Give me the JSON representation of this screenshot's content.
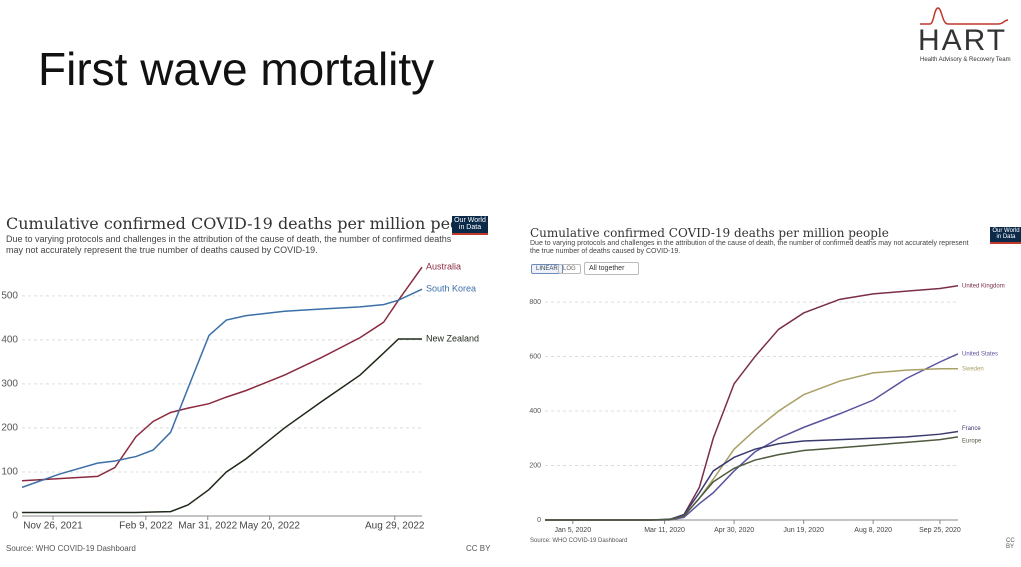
{
  "slide": {
    "title": "First wave mortality",
    "logo": "HART",
    "logo_subtitle": "Health Advisory & Recovery Team"
  },
  "chart_data": [
    {
      "type": "line",
      "title": "Cumulative confirmed COVID-19 deaths per million people",
      "subtitle": "Due to varying protocols and challenges in the attribution of the cause of death, the number of confirmed deaths may not accurately represent the true number of deaths caused by COVID-19.",
      "badge": "Our World in Data",
      "source": "Source: WHO COVID-19 Dashboard",
      "license": "CC BY",
      "x": [
        "2021-11-01",
        "2021-12-01",
        "2022-01-01",
        "2022-01-15",
        "2022-02-01",
        "2022-02-15",
        "2022-03-01",
        "2022-03-15",
        "2022-04-01",
        "2022-04-15",
        "2022-05-01",
        "2022-06-01",
        "2022-07-01",
        "2022-08-01",
        "2022-08-20",
        "2022-09-01",
        "2022-09-20"
      ],
      "xlim": [
        "2021-11-01",
        "2022-09-20"
      ],
      "xticks": [
        {
          "value": "2021-11-26",
          "label": "Nov 26, 2021"
        },
        {
          "value": "2022-02-09",
          "label": "Feb 9, 2022"
        },
        {
          "value": "2022-03-31",
          "label": "Mar 31, 2022"
        },
        {
          "value": "2022-05-20",
          "label": "May 20, 2022"
        },
        {
          "value": "2022-08-29",
          "label": "Aug 29, 2022"
        }
      ],
      "ylim": [
        0,
        570
      ],
      "yticks": [
        0,
        100,
        200,
        300,
        400,
        500
      ],
      "grid": true,
      "series": [
        {
          "name": "Australia",
          "color": "#8b2a3e",
          "values": [
            80,
            85,
            90,
            110,
            180,
            215,
            235,
            245,
            255,
            270,
            285,
            320,
            360,
            405,
            440,
            490,
            565
          ]
        },
        {
          "name": "South Korea",
          "color": "#3c6fa8",
          "values": [
            65,
            95,
            120,
            125,
            135,
            150,
            190,
            290,
            410,
            445,
            455,
            465,
            470,
            475,
            480,
            490,
            515
          ]
        },
        {
          "name": "New Zealand",
          "color": "#1f2a1a",
          "values": [
            8,
            8,
            8,
            8,
            8,
            9,
            10,
            25,
            60,
            100,
            130,
            200,
            260,
            320,
            370,
            402,
            402
          ]
        }
      ]
    },
    {
      "type": "line",
      "title": "Cumulative confirmed COVID-19 deaths per million people",
      "subtitle": "Due to varying protocols and challenges in the attribution of the cause of death, the number of confirmed deaths may not accurately represent the true number of deaths caused by COVID-19.",
      "badge": "Our World in Data",
      "source": "Source: WHO COVID-19 Dashboard",
      "license": "CC BY",
      "buttons": [
        "LINEAR",
        "LOG"
      ],
      "dropdown": "All together",
      "x": [
        "2019-12-16",
        "2020-03-01",
        "2020-03-15",
        "2020-03-25",
        "2020-04-05",
        "2020-04-15",
        "2020-04-30",
        "2020-05-15",
        "2020-06-01",
        "2020-06-19",
        "2020-07-15",
        "2020-08-08",
        "2020-09-01",
        "2020-09-25",
        "2020-10-08"
      ],
      "xlim": [
        "2019-12-16",
        "2020-10-08"
      ],
      "xticks": [
        {
          "value": "2020-01-05",
          "label": "Jan 5, 2020"
        },
        {
          "value": "2020-03-11",
          "label": "Mar 11, 2020"
        },
        {
          "value": "2020-04-30",
          "label": "Apr 30, 2020"
        },
        {
          "value": "2020-06-19",
          "label": "Jun 19, 2020"
        },
        {
          "value": "2020-08-08",
          "label": "Aug 8, 2020"
        },
        {
          "value": "2020-09-25",
          "label": "Sep 25, 2020"
        }
      ],
      "ylim": [
        0,
        870
      ],
      "yticks": [
        0,
        200,
        400,
        600,
        800
      ],
      "grid": true,
      "series": [
        {
          "name": "United Kingdom",
          "color": "#7a2e4a",
          "values": [
            0,
            0,
            1,
            20,
            120,
            300,
            500,
            600,
            700,
            760,
            810,
            830,
            840,
            850,
            860
          ]
        },
        {
          "name": "United States",
          "color": "#5a54a0",
          "values": [
            0,
            0,
            0,
            10,
            60,
            100,
            180,
            250,
            300,
            340,
            390,
            440,
            520,
            580,
            610
          ]
        },
        {
          "name": "Sweden",
          "color": "#a8a066",
          "values": [
            0,
            0,
            1,
            15,
            80,
            150,
            260,
            330,
            400,
            460,
            510,
            540,
            550,
            555,
            555
          ]
        },
        {
          "name": "France",
          "color": "#3b3a6e",
          "values": [
            0,
            0,
            3,
            20,
            100,
            180,
            230,
            260,
            280,
            290,
            295,
            300,
            305,
            315,
            325
          ]
        },
        {
          "name": "Europe",
          "color": "#4f5b3e",
          "values": [
            0,
            0,
            2,
            15,
            80,
            140,
            190,
            220,
            240,
            255,
            265,
            275,
            285,
            295,
            305
          ]
        }
      ]
    }
  ]
}
